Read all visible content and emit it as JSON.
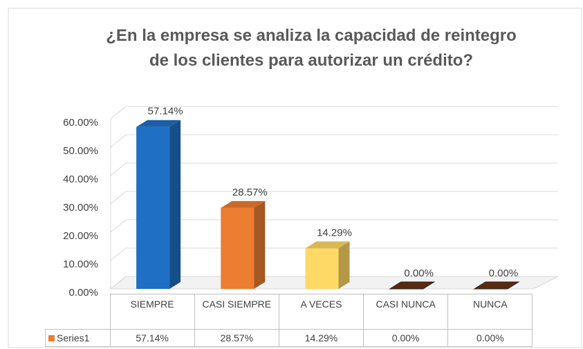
{
  "chart_data": {
    "type": "bar3d",
    "title": "¿En la empresa se analiza la capacidad de reintegro de los clientes para autorizar un crédito?",
    "categories": [
      "SIEMPRE",
      "CASI SIEMPRE",
      "A VECES",
      "CASI NUNCA",
      "NUNCA"
    ],
    "series": [
      {
        "name": "Series1",
        "color": "#ed7d31",
        "colors": [
          "#1f6fc5",
          "#ed7d31",
          "#ffd966",
          "#5a2a0c",
          "#5a2a0c"
        ],
        "values": [
          57.14,
          28.57,
          14.29,
          0,
          0
        ],
        "value_labels": [
          "57.14%",
          "28.57%",
          "14.29%",
          "0.00%",
          "0.00%"
        ]
      }
    ],
    "ylim": [
      0,
      60
    ],
    "yticks": [
      {
        "value": 0,
        "label": "0.00%"
      },
      {
        "value": 10,
        "label": "10.00%"
      },
      {
        "value": 20,
        "label": "20.00%"
      },
      {
        "value": 30,
        "label": "30.00%"
      },
      {
        "value": 40,
        "label": "40.00%"
      },
      {
        "value": 50,
        "label": "50.00%"
      },
      {
        "value": 60,
        "label": "60.00%"
      }
    ],
    "grid": true,
    "data_table": true
  }
}
